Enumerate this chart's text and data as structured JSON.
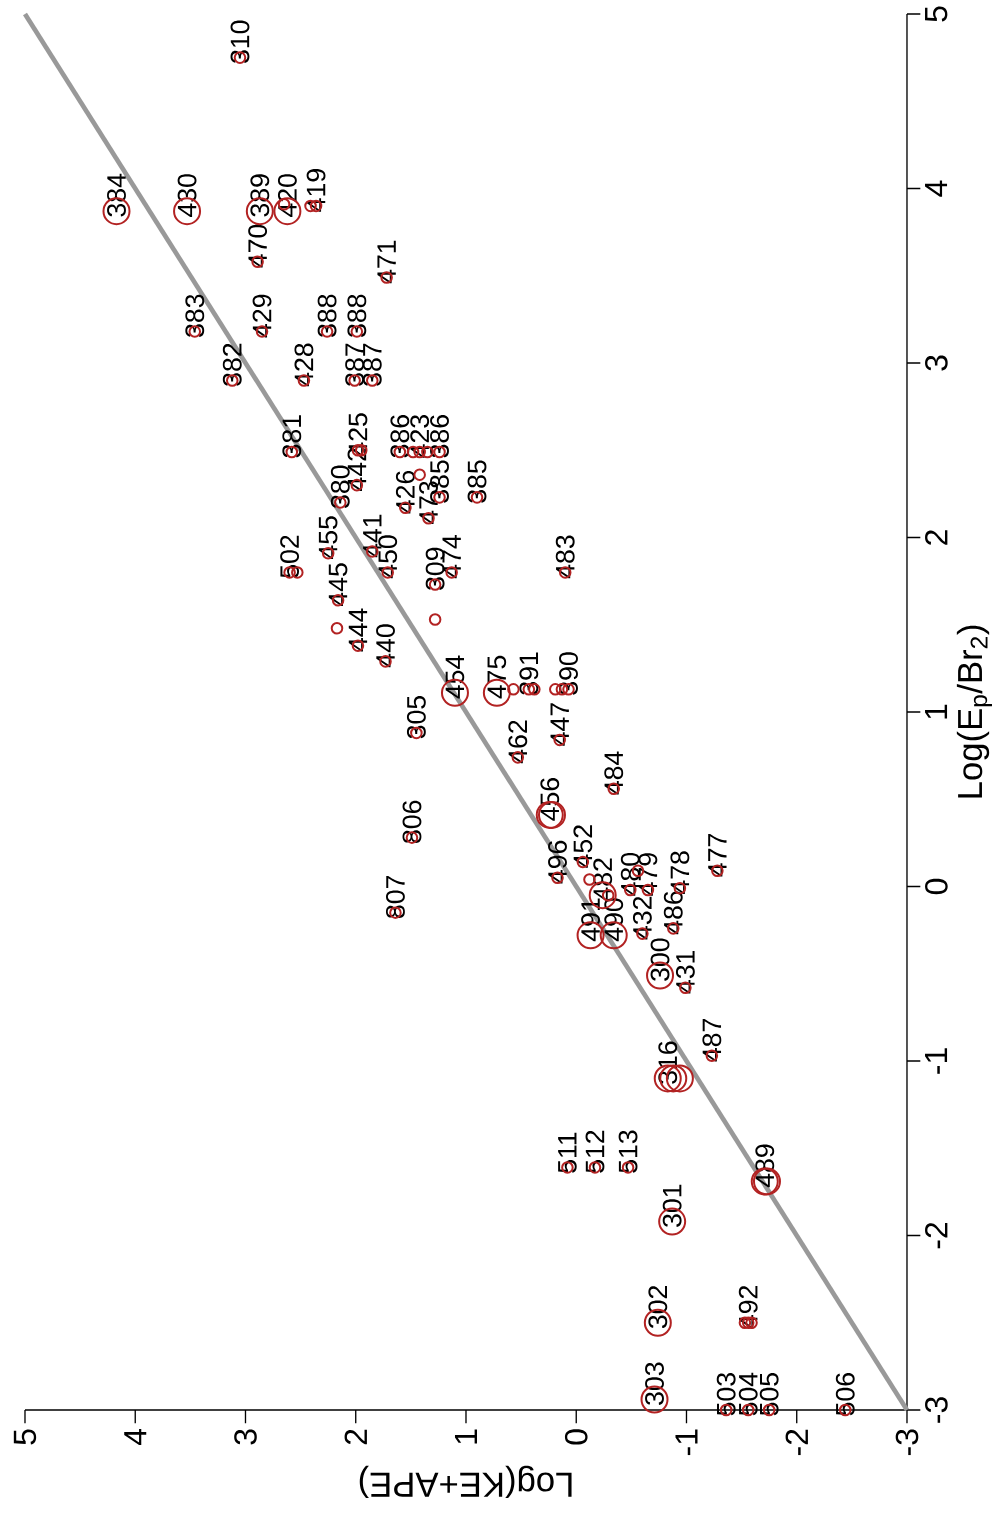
{
  "chart_data": {
    "type": "bubble",
    "xlabel": "Log(KE+APE)",
    "ylabel": "Log(E$_{p}$/Br$_{2}$)",
    "xlim": [
      5,
      -3
    ],
    "ylim": [
      -3,
      5
    ],
    "xticks": [
      -3,
      -2,
      -1,
      0,
      1,
      2,
      3,
      4,
      5
    ],
    "yticks": [
      -3,
      -2,
      -1,
      0,
      1,
      2,
      3,
      4,
      5
    ],
    "marker": "circle",
    "series": [
      {
        "color": "#b22222",
        "x": [
          3.05,
          4.17,
          3.53,
          2.87,
          2.62,
          2.65,
          2.41,
          2.36,
          2.89,
          1.72,
          3.46,
          2.85,
          2.26,
          1.99,
          3.12,
          2.47,
          2.01,
          1.85,
          2.58,
          1.98,
          1.95,
          1.99,
          2.14,
          1.6,
          1.48,
          1.42,
          1.35,
          1.24,
          1.42,
          1.24,
          1.55,
          1.34,
          0.9,
          2.25,
          2.6,
          2.53,
          1.85,
          1.71,
          1.28,
          1.13,
          0.1,
          2.16,
          2.17,
          1.98,
          1.73,
          1.28,
          1.1,
          0.72,
          0.57,
          0.43,
          0.38,
          0.19,
          0.13,
          0.07,
          0.15,
          0.53,
          1.45,
          -0.34,
          0.24,
          0.22,
          1.49,
          0.17,
          -0.06,
          -0.12,
          -0.24,
          -0.29,
          -0.13,
          -0.34,
          -0.49,
          -0.56,
          -0.65,
          -0.6,
          -0.94,
          -0.88,
          -1.28,
          -0.76,
          -0.99,
          1.64,
          -1.23,
          -0.83,
          -0.88,
          -0.94,
          0.08,
          -0.17,
          -0.47,
          -1.73,
          -1.71,
          -0.87,
          -0.74,
          -1.53,
          -1.56,
          -1.59,
          -0.71,
          -1.36,
          -1.56,
          -1.75,
          -2.44
        ],
        "values": [
          4.75,
          3.87,
          3.87,
          3.87,
          3.87,
          3.91,
          3.9,
          3.9,
          3.58,
          3.49,
          3.18,
          3.18,
          3.18,
          3.18,
          2.9,
          2.9,
          2.9,
          2.9,
          2.49,
          2.5,
          2.5,
          2.3,
          2.2,
          2.49,
          2.49,
          2.49,
          2.49,
          2.49,
          2.36,
          2.23,
          2.17,
          2.11,
          2.23,
          1.91,
          1.8,
          1.8,
          1.92,
          1.8,
          1.73,
          1.8,
          1.8,
          1.64,
          1.48,
          1.38,
          1.29,
          1.53,
          1.11,
          1.11,
          1.13,
          1.13,
          1.13,
          1.13,
          1.13,
          1.13,
          0.84,
          0.74,
          0.88,
          0.56,
          0.41,
          0.41,
          0.28,
          0.05,
          0.14,
          0.04,
          -0.05,
          -0.05,
          -0.28,
          -0.28,
          -0.02,
          0.09,
          -0.02,
          -0.27,
          -0.01,
          -0.24,
          0.09,
          -0.51,
          -0.58,
          -0.15,
          -0.97,
          -1.1,
          -1.1,
          -1.1,
          -1.61,
          -1.61,
          -1.61,
          -1.69,
          -1.69,
          -1.92,
          -2.5,
          -2.5,
          -2.5,
          -2.5,
          -2.94,
          -3.0,
          -3.0,
          -3.0,
          -3.0
        ],
        "sizes": [
          0.2,
          1,
          1,
          1,
          1,
          0.2,
          0.2,
          0.2,
          0.2,
          0.2,
          0.2,
          0.2,
          0.2,
          0.2,
          0.2,
          0.2,
          0.2,
          0.2,
          0.2,
          0.2,
          0.2,
          0.2,
          0.2,
          0.2,
          0.2,
          0.2,
          0.2,
          0.2,
          0.2,
          0.2,
          0.2,
          0.2,
          0.2,
          0.2,
          0.2,
          0.2,
          0.2,
          0.2,
          0.2,
          0.2,
          0.2,
          0.2,
          0.2,
          0.2,
          0.2,
          0.2,
          1,
          1,
          0.2,
          0.2,
          0.2,
          0.2,
          0.2,
          0.2,
          0.2,
          0.2,
          0.2,
          0.2,
          1,
          1,
          0.2,
          0.2,
          0.2,
          0.2,
          1,
          0.2,
          1,
          1,
          0.2,
          0.2,
          0.2,
          0.2,
          0.2,
          0.2,
          0.2,
          1,
          0.2,
          0.2,
          0.2,
          1,
          1,
          1,
          0.2,
          0.2,
          0.2,
          1,
          1,
          1,
          1,
          0.2,
          0.2,
          0.2,
          1,
          0.2,
          0.2,
          0.2,
          0.2
        ]
      },
      {
        "type": "line",
        "color": "#999999",
        "marker": "none",
        "x": [
          -3,
          5
        ],
        "values": [
          -3,
          5
        ]
      }
    ],
    "annotations": [
      {
        "text": "310",
        "x": 3.05,
        "y": 4.75
      },
      {
        "text": "384",
        "x": 4.17,
        "y": 3.87
      },
      {
        "text": "430",
        "x": 3.53,
        "y": 3.87
      },
      {
        "text": "389",
        "x": 2.87,
        "y": 3.87
      },
      {
        "text": "420",
        "x": 2.62,
        "y": 3.87
      },
      {
        "text": "419",
        "x": 2.36,
        "y": 3.9
      },
      {
        "text": "470",
        "x": 2.89,
        "y": 3.58
      },
      {
        "text": "471",
        "x": 1.72,
        "y": 3.49
      },
      {
        "text": "383",
        "x": 3.46,
        "y": 3.18
      },
      {
        "text": "429",
        "x": 2.85,
        "y": 3.18
      },
      {
        "text": "388",
        "x": 2.26,
        "y": 3.18
      },
      {
        "text": "388",
        "x": 1.99,
        "y": 3.18
      },
      {
        "text": "382",
        "x": 3.12,
        "y": 2.9
      },
      {
        "text": "428",
        "x": 2.47,
        "y": 2.9
      },
      {
        "text": "387",
        "x": 2.01,
        "y": 2.9
      },
      {
        "text": "387",
        "x": 1.85,
        "y": 2.9
      },
      {
        "text": "381",
        "x": 2.58,
        "y": 2.49
      },
      {
        "text": "425",
        "x": 1.98,
        "y": 2.5
      },
      {
        "text": "442",
        "x": 1.99,
        "y": 2.3
      },
      {
        "text": "380",
        "x": 2.14,
        "y": 2.2
      },
      {
        "text": "386",
        "x": 1.6,
        "y": 2.49
      },
      {
        "text": "423",
        "x": 1.42,
        "y": 2.49
      },
      {
        "text": "386",
        "x": 1.24,
        "y": 2.49
      },
      {
        "text": "385",
        "x": 1.24,
        "y": 2.23
      },
      {
        "text": "426",
        "x": 1.55,
        "y": 2.17
      },
      {
        "text": "473",
        "x": 1.34,
        "y": 2.11
      },
      {
        "text": "385",
        "x": 0.9,
        "y": 2.23
      },
      {
        "text": "455",
        "x": 2.25,
        "y": 1.91
      },
      {
        "text": "502",
        "x": 2.6,
        "y": 1.8
      },
      {
        "text": "441",
        "x": 1.85,
        "y": 1.92
      },
      {
        "text": "450",
        "x": 1.71,
        "y": 1.8
      },
      {
        "text": "309",
        "x": 1.28,
        "y": 1.73
      },
      {
        "text": "474",
        "x": 1.13,
        "y": 1.8
      },
      {
        "text": "483",
        "x": 0.1,
        "y": 1.8
      },
      {
        "text": "445",
        "x": 2.16,
        "y": 1.64
      },
      {
        "text": "444",
        "x": 1.98,
        "y": 1.38
      },
      {
        "text": "440",
        "x": 1.73,
        "y": 1.29
      },
      {
        "text": "454",
        "x": 1.1,
        "y": 1.11
      },
      {
        "text": "475",
        "x": 0.72,
        "y": 1.11
      },
      {
        "text": "391",
        "x": 0.43,
        "y": 1.13
      },
      {
        "text": "390",
        "x": 0.07,
        "y": 1.13
      },
      {
        "text": "447",
        "x": 0.15,
        "y": 0.84
      },
      {
        "text": "462",
        "x": 0.53,
        "y": 0.74
      },
      {
        "text": "305",
        "x": 1.45,
        "y": 0.88
      },
      {
        "text": "484",
        "x": -0.34,
        "y": 0.56
      },
      {
        "text": "456",
        "x": 0.24,
        "y": 0.41
      },
      {
        "text": "806",
        "x": 1.49,
        "y": 0.28
      },
      {
        "text": "496",
        "x": 0.17,
        "y": 0.05
      },
      {
        "text": "452",
        "x": -0.06,
        "y": 0.14
      },
      {
        "text": "482",
        "x": -0.24,
        "y": -0.05
      },
      {
        "text": "491",
        "x": -0.13,
        "y": -0.28
      },
      {
        "text": "490",
        "x": -0.34,
        "y": -0.28
      },
      {
        "text": "480",
        "x": -0.49,
        "y": -0.02
      },
      {
        "text": "479",
        "x": -0.65,
        "y": -0.02
      },
      {
        "text": "432",
        "x": -0.6,
        "y": -0.27
      },
      {
        "text": "478",
        "x": -0.94,
        "y": -0.01
      },
      {
        "text": "486",
        "x": -0.88,
        "y": -0.24
      },
      {
        "text": "477",
        "x": -1.28,
        "y": 0.09
      },
      {
        "text": "300",
        "x": -0.76,
        "y": -0.51
      },
      {
        "text": "431",
        "x": -0.99,
        "y": -0.58
      },
      {
        "text": "807",
        "x": 1.64,
        "y": -0.15
      },
      {
        "text": "487",
        "x": -1.23,
        "y": -0.97
      },
      {
        "text": "316",
        "x": -0.83,
        "y": -1.1
      },
      {
        "text": "511",
        "x": 0.08,
        "y": -1.61
      },
      {
        "text": "512",
        "x": -0.17,
        "y": -1.61
      },
      {
        "text": "513",
        "x": -0.47,
        "y": -1.61
      },
      {
        "text": "489",
        "x": -1.71,
        "y": -1.69
      },
      {
        "text": "301",
        "x": -0.87,
        "y": -1.92
      },
      {
        "text": "302",
        "x": -0.74,
        "y": -2.5
      },
      {
        "text": "492",
        "x": -1.56,
        "y": -2.5
      },
      {
        "text": "303",
        "x": -0.71,
        "y": -2.94
      },
      {
        "text": "503",
        "x": -1.36,
        "y": -3.0
      },
      {
        "text": "504",
        "x": -1.56,
        "y": -3.0
      },
      {
        "text": "505",
        "x": -1.75,
        "y": -3.0
      },
      {
        "text": "506",
        "x": -2.44,
        "y": -3.0
      }
    ]
  }
}
